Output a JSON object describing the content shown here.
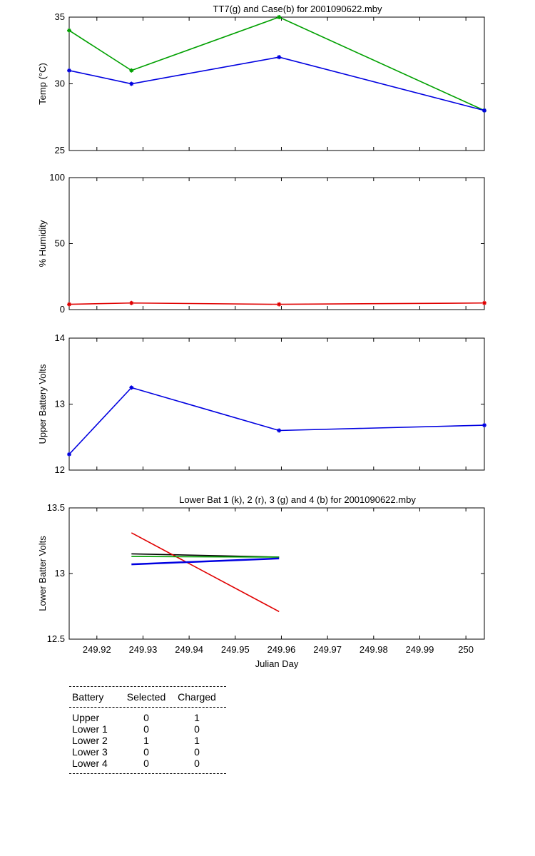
{
  "chart_data": [
    {
      "type": "line",
      "title": "TT7(g) and Case(b) for 2001090622.mby",
      "ylabel": "Temp (°C)",
      "xlabel": "",
      "xlim": [
        249.914,
        250.004
      ],
      "ylim": [
        25,
        35
      ],
      "yticks": [
        25,
        30,
        35
      ],
      "series": [
        {
          "name": "TT7",
          "color": "#00a000",
          "marker": "*",
          "x": [
            249.914,
            249.9275,
            249.9595,
            250.004
          ],
          "y": [
            34,
            31,
            35,
            28
          ]
        },
        {
          "name": "Case",
          "color": "#0000e0",
          "marker": "*",
          "x": [
            249.914,
            249.9275,
            249.9595,
            250.004
          ],
          "y": [
            31,
            30,
            32,
            28
          ]
        }
      ]
    },
    {
      "type": "line",
      "title": "",
      "ylabel": "% Humidity",
      "xlabel": "",
      "xlim": [
        249.914,
        250.004
      ],
      "ylim": [
        0,
        100
      ],
      "yticks": [
        0,
        50,
        100
      ],
      "series": [
        {
          "color": "#e00000",
          "marker": "*",
          "x": [
            249.914,
            249.9275,
            249.9595,
            250.004
          ],
          "y": [
            4,
            5,
            4,
            5
          ]
        }
      ]
    },
    {
      "type": "line",
      "title": "",
      "ylabel": "Upper Battery Volts",
      "xlabel": "",
      "xlim": [
        249.914,
        250.004
      ],
      "ylim": [
        12,
        14
      ],
      "yticks": [
        12,
        13,
        14
      ],
      "series": [
        {
          "color": "#0000e0",
          "marker": "*",
          "x": [
            249.914,
            249.9275,
            249.9595,
            250.004
          ],
          "y": [
            12.24,
            13.25,
            12.6,
            12.68
          ]
        }
      ]
    },
    {
      "type": "line",
      "title": "Lower Bat 1 (k), 2 (r), 3 (g) and 4 (b) for 2001090622.mby",
      "ylabel": "Lower Batter Volts",
      "xlabel": "Julian Day",
      "xlim": [
        249.914,
        250.004
      ],
      "ylim": [
        12.5,
        13.5
      ],
      "yticks": [
        12.5,
        13,
        13.5
      ],
      "xticks": [
        249.92,
        249.93,
        249.94,
        249.95,
        249.96,
        249.97,
        249.98,
        249.99,
        250
      ],
      "xticklabels": [
        "249.92",
        "249.93",
        "249.94",
        "249.95",
        "249.96",
        "249.97",
        "249.98",
        "249.99",
        "250"
      ],
      "series": [
        {
          "name": "1",
          "color": "#000000",
          "x": [
            249.9275,
            249.9595
          ],
          "y": [
            13.15,
            13.125
          ]
        },
        {
          "name": "2",
          "color": "#e00000",
          "x": [
            249.9275,
            249.9595
          ],
          "y": [
            13.31,
            12.71
          ]
        },
        {
          "name": "3",
          "color": "#00a000",
          "x": [
            249.9275,
            249.9595
          ],
          "y": [
            13.13,
            13.125
          ]
        },
        {
          "name": "4",
          "color": "#0000e0",
          "x": [
            249.9275,
            249.9595
          ],
          "y": [
            13.07,
            13.115
          ]
        }
      ]
    }
  ],
  "battery_table": {
    "headers": [
      "Battery",
      "Selected",
      "Charged"
    ],
    "rows": [
      [
        "Upper",
        "0",
        "1"
      ],
      [
        "Lower 1",
        "0",
        "0"
      ],
      [
        "Lower 2",
        "1",
        "1"
      ],
      [
        "Lower 3",
        "0",
        "0"
      ],
      [
        "Lower 4",
        "0",
        "0"
      ]
    ]
  }
}
